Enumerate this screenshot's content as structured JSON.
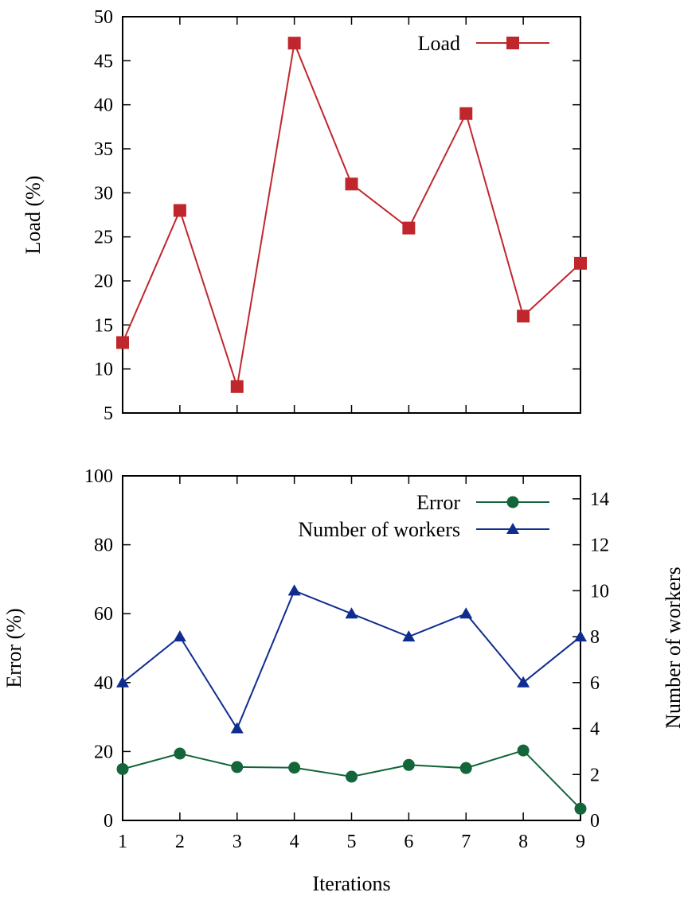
{
  "chart_data": [
    {
      "type": "line",
      "title": "",
      "xlabel": "",
      "ylabel": "Load (%)",
      "x": [
        1,
        2,
        3,
        4,
        5,
        6,
        7,
        8,
        9
      ],
      "xlim": [
        1,
        9
      ],
      "ylim": [
        5,
        50
      ],
      "yticks": [
        5,
        10,
        15,
        20,
        25,
        30,
        35,
        40,
        45,
        50
      ],
      "grid": false,
      "legend_position": "top-right",
      "series": [
        {
          "name": "Load",
          "values": [
            13,
            28,
            8,
            47,
            31,
            26,
            39,
            16,
            22
          ],
          "color": "#c0272d",
          "marker": "square",
          "axis": "left"
        }
      ]
    },
    {
      "type": "line",
      "title": "",
      "xlabel": "Iterations",
      "ylabel": "Error (%)",
      "y2label": "Number of workers",
      "x": [
        1,
        2,
        3,
        4,
        5,
        6,
        7,
        8,
        9
      ],
      "xlim": [
        1,
        9
      ],
      "xticks": [
        1,
        2,
        3,
        4,
        5,
        6,
        7,
        8,
        9
      ],
      "ylim": [
        0,
        100
      ],
      "yticks": [
        0,
        20,
        40,
        60,
        80,
        100
      ],
      "y2lim": [
        0,
        15
      ],
      "y2ticks": [
        0,
        2,
        4,
        6,
        8,
        10,
        12,
        14
      ],
      "grid": false,
      "legend_position": "top-right",
      "series": [
        {
          "name": "Error",
          "values": [
            14.9,
            19.4,
            15.5,
            15.3,
            12.7,
            16.1,
            15.2,
            20.3,
            3.4
          ],
          "color": "#13653a",
          "marker": "circle",
          "axis": "left"
        },
        {
          "name": "Number of workers",
          "values": [
            6,
            8,
            4,
            10,
            9,
            8,
            9,
            6,
            8
          ],
          "color": "#0f2d8f",
          "marker": "triangle",
          "axis": "right"
        }
      ]
    }
  ]
}
